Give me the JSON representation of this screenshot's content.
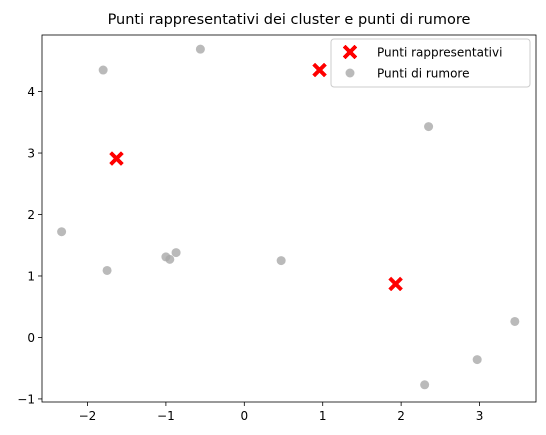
{
  "chart_data": {
    "type": "scatter",
    "title": "Punti rappresentativi dei cluster e punti di rumore",
    "xlabel": "",
    "ylabel": "",
    "xlim": [
      -2.58,
      3.72
    ],
    "ylim": [
      -1.05,
      4.92
    ],
    "grid": false,
    "legend_position": "top-right",
    "x_ticks": [
      -2,
      -1,
      0,
      1,
      2,
      3
    ],
    "y_ticks": [
      -1,
      0,
      1,
      2,
      3,
      4
    ],
    "x_tick_labels": [
      "−2",
      "−1",
      "0",
      "1",
      "2",
      "3"
    ],
    "y_tick_labels": [
      "−1",
      "0",
      "1",
      "2",
      "3",
      "4"
    ],
    "series": [
      {
        "name": "Punti rappresentativi",
        "marker": "X",
        "color": "#ff0000",
        "points": [
          {
            "x": -1.63,
            "y": 2.91
          },
          {
            "x": 0.96,
            "y": 4.35
          },
          {
            "x": 1.93,
            "y": 0.87
          }
        ]
      },
      {
        "name": "Punti di rumore",
        "marker": "circle",
        "color": "#a9a9a9",
        "points": [
          {
            "x": -0.56,
            "y": 4.69
          },
          {
            "x": -1.8,
            "y": 4.35
          },
          {
            "x": 2.35,
            "y": 3.43
          },
          {
            "x": -2.33,
            "y": 1.72
          },
          {
            "x": -0.87,
            "y": 1.38
          },
          {
            "x": -1.0,
            "y": 1.31
          },
          {
            "x": -0.95,
            "y": 1.27
          },
          {
            "x": 0.47,
            "y": 1.25
          },
          {
            "x": -1.75,
            "y": 1.09
          },
          {
            "x": 3.45,
            "y": 0.26
          },
          {
            "x": 2.97,
            "y": -0.36
          },
          {
            "x": 2.3,
            "y": -0.77
          }
        ]
      }
    ]
  }
}
